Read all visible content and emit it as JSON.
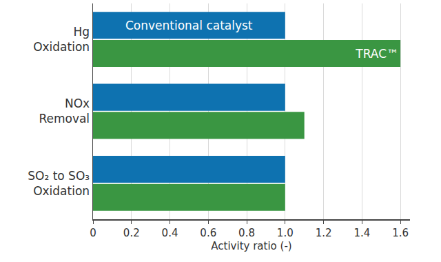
{
  "chart_data": {
    "type": "bar",
    "orientation": "horizontal",
    "categories": [
      "Hg Oxidation",
      "NOx Removal",
      "SO₂ to SO₃ Oxidation"
    ],
    "series": [
      {
        "name": "Conventional catalyst",
        "color": "#0e72b0",
        "values": [
          1.0,
          1.0,
          1.0
        ]
      },
      {
        "name": "TRAC™",
        "color": "#3a9642",
        "values": [
          1.6,
          1.1,
          1.0
        ]
      }
    ],
    "x_label": "Activity ratio (-)",
    "xlim": [
      0,
      1.65
    ],
    "xticks": [
      0,
      0.2,
      0.4,
      0.6,
      0.8,
      {
        "value": 1,
        "label": "1.0"
      },
      1.2,
      1.4,
      1.6
    ],
    "grid": true
  }
}
